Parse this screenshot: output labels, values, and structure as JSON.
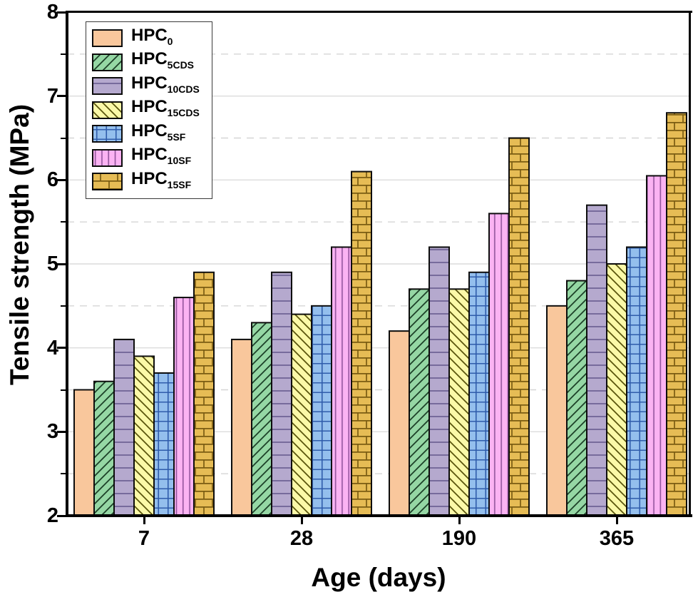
{
  "chart_data": {
    "type": "bar",
    "title": "",
    "xlabel": "Age (days)",
    "ylabel": "Tensile strength (MPa)",
    "categories": [
      "7",
      "28",
      "190",
      "365"
    ],
    "ylim": [
      2,
      8
    ],
    "yticks": [
      8,
      7,
      6,
      5,
      4,
      3,
      2
    ],
    "minor_tick_step": 0.5,
    "grid": "horizontal only: solid light lines at integers, dashed light lines at half-integers",
    "legend_position": "top-left inside plot",
    "series": [
      {
        "name": "HPC0",
        "label_main": "HPC",
        "label_sub": "0",
        "fill": "#F9C79C",
        "hatch": "#000000",
        "pattern": "solid",
        "values": [
          3.5,
          4.1,
          4.2,
          4.5
        ]
      },
      {
        "name": "HPC5CDS",
        "label_main": "HPC",
        "label_sub": "5CDS",
        "fill": "#95D7A4",
        "hatch": "#1c4028",
        "pattern": "diagonal-up",
        "values": [
          3.6,
          4.3,
          4.7,
          4.8
        ]
      },
      {
        "name": "HPC10CDS",
        "label_main": "HPC",
        "label_sub": "10CDS",
        "fill": "#B5A9CE",
        "hatch": "#6e6295",
        "pattern": "horizontal-lines",
        "values": [
          4.1,
          4.9,
          5.2,
          5.7
        ]
      },
      {
        "name": "HPC15CDS",
        "label_main": "HPC",
        "label_sub": "15CDS",
        "fill": "#FBF9A8",
        "hatch": "#5a550d",
        "pattern": "diagonal-down",
        "values": [
          3.9,
          4.4,
          4.7,
          5.0
        ]
      },
      {
        "name": "HPC5SF",
        "label_main": "HPC",
        "label_sub": "5SF",
        "fill": "#94BFED",
        "hatch": "#2f5cab",
        "pattern": "grid",
        "values": [
          3.7,
          4.5,
          4.9,
          5.2
        ]
      },
      {
        "name": "HPC10SF",
        "label_main": "HPC",
        "label_sub": "10SF",
        "fill": "#FBB3F3",
        "hatch": "#96589f",
        "pattern": "vertical-lines",
        "values": [
          4.6,
          5.2,
          5.6,
          6.05
        ]
      },
      {
        "name": "HPC15SF",
        "label_main": "HPC",
        "label_sub": "15SF",
        "fill": "#E6BC55",
        "hatch": "#7a5c12",
        "pattern": "brick",
        "values": [
          4.9,
          6.1,
          6.5,
          6.8
        ]
      }
    ],
    "colors": {
      "axis": "#000000",
      "bar_outline": "#0d0d0d",
      "grid_solid": "#dcdcdc",
      "grid_dashed": "#d6d6d6",
      "legend_border": "#3a3a3a",
      "background": "#ffffff"
    }
  }
}
